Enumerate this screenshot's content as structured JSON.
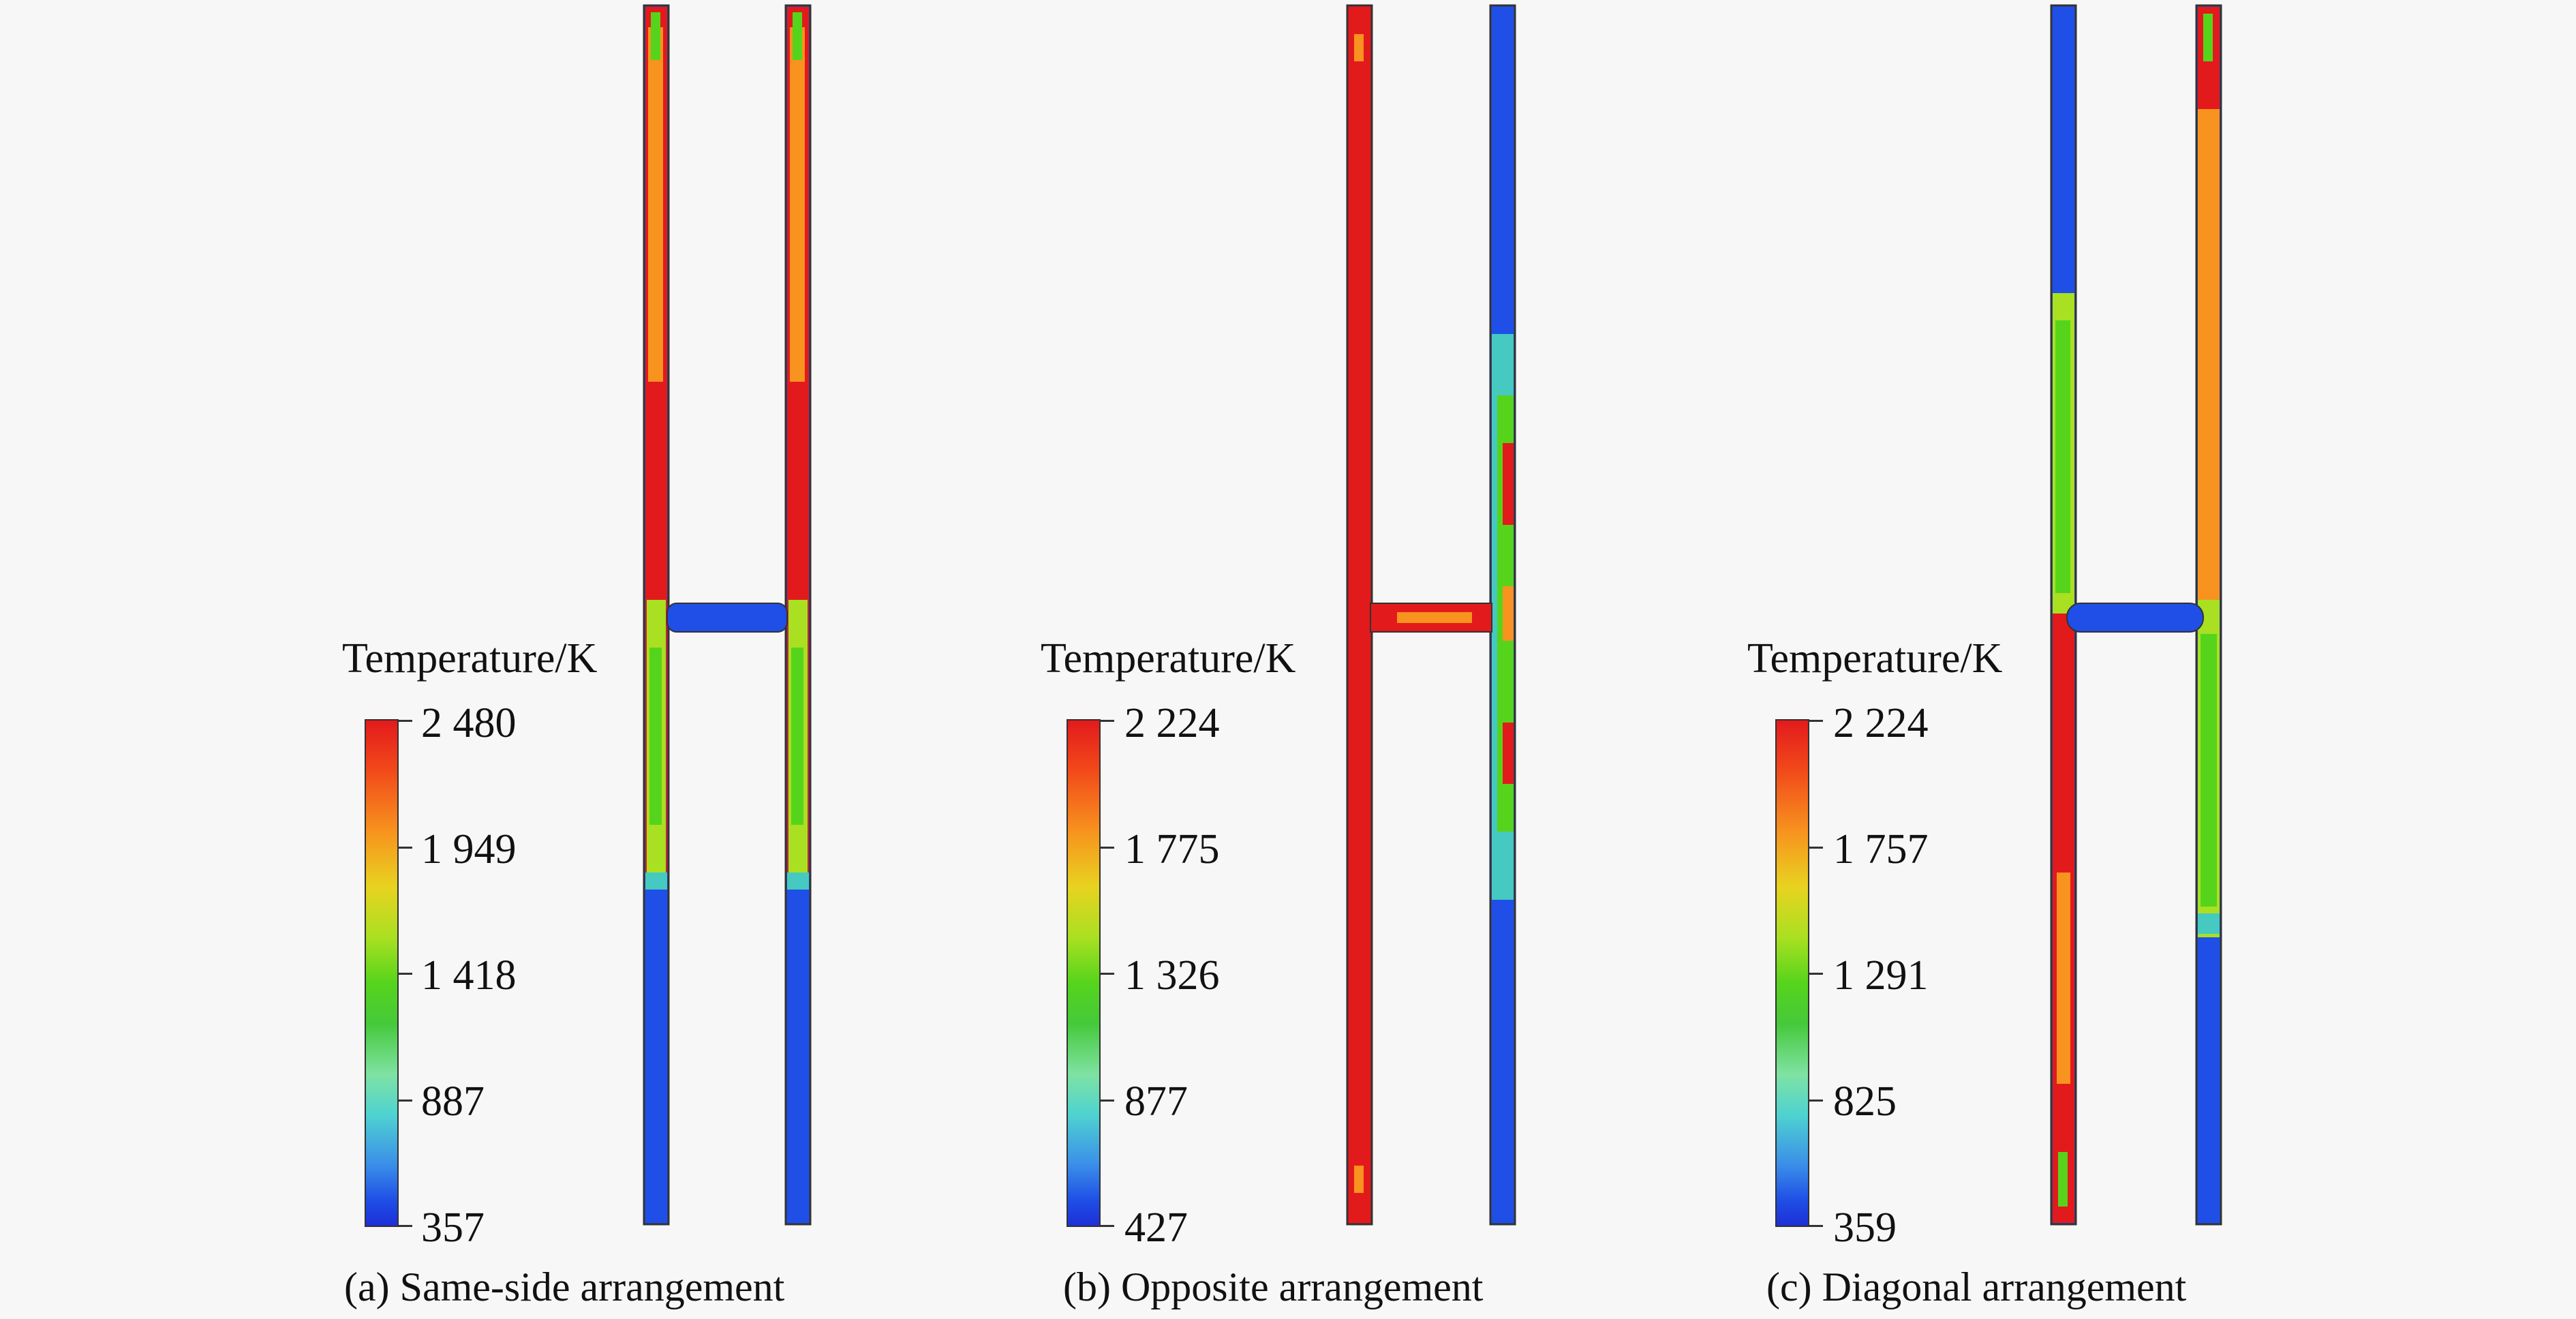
{
  "colors": {
    "hot": "#e31a1c",
    "warm": "#f7931e",
    "mid": "#56d41c",
    "cool": "#45c9c0",
    "cold": "#1f4fe6",
    "background": "#f7f7f7"
  },
  "panels": [
    {
      "caption": "(a) Same-side arrangement",
      "legend_title": "Temperature/K",
      "ticks": [
        "2 480",
        "1 949",
        "1 418",
        "887",
        "357"
      ],
      "range": [
        357,
        2480
      ]
    },
    {
      "caption": "(b) Opposite arrangement",
      "legend_title": "Temperature/K",
      "ticks": [
        "2 224",
        "1 775",
        "1 326",
        "877",
        "427"
      ],
      "range": [
        427,
        2224
      ]
    },
    {
      "caption": "(c) Diagonal arrangement",
      "legend_title": "Temperature/K",
      "ticks": [
        "2 224",
        "1 757",
        "1 291",
        "825",
        "359"
      ],
      "range": [
        359,
        2224
      ]
    }
  ]
}
